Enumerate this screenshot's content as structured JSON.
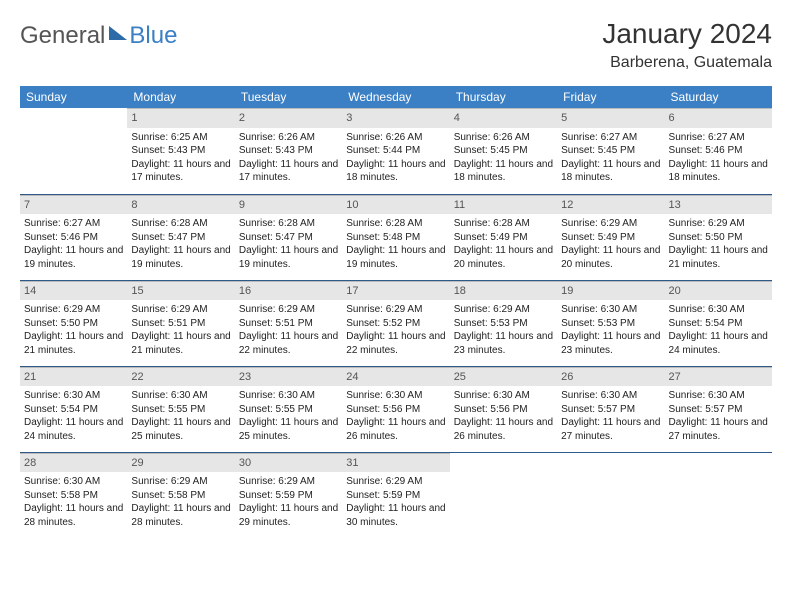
{
  "brand": {
    "word1": "General",
    "word2": "Blue"
  },
  "title": "January 2024",
  "location": "Barberena, Guatemala",
  "weekday_labels": [
    "Sunday",
    "Monday",
    "Tuesday",
    "Wednesday",
    "Thursday",
    "Friday",
    "Saturday"
  ],
  "colors": {
    "header_bg": "#3b7fc4",
    "header_text": "#ffffff",
    "daynum_bg": "#e6e6e6",
    "rule": "#2d5a8a",
    "logo_blue": "#3b7fc4"
  },
  "weeks": [
    [
      null,
      {
        "n": "1",
        "sunrise": "6:25 AM",
        "sunset": "5:43 PM",
        "dl_h": "11",
        "dl_m": "17"
      },
      {
        "n": "2",
        "sunrise": "6:26 AM",
        "sunset": "5:43 PM",
        "dl_h": "11",
        "dl_m": "17"
      },
      {
        "n": "3",
        "sunrise": "6:26 AM",
        "sunset": "5:44 PM",
        "dl_h": "11",
        "dl_m": "18"
      },
      {
        "n": "4",
        "sunrise": "6:26 AM",
        "sunset": "5:45 PM",
        "dl_h": "11",
        "dl_m": "18"
      },
      {
        "n": "5",
        "sunrise": "6:27 AM",
        "sunset": "5:45 PM",
        "dl_h": "11",
        "dl_m": "18"
      },
      {
        "n": "6",
        "sunrise": "6:27 AM",
        "sunset": "5:46 PM",
        "dl_h": "11",
        "dl_m": "18"
      }
    ],
    [
      {
        "n": "7",
        "sunrise": "6:27 AM",
        "sunset": "5:46 PM",
        "dl_h": "11",
        "dl_m": "19"
      },
      {
        "n": "8",
        "sunrise": "6:28 AM",
        "sunset": "5:47 PM",
        "dl_h": "11",
        "dl_m": "19"
      },
      {
        "n": "9",
        "sunrise": "6:28 AM",
        "sunset": "5:47 PM",
        "dl_h": "11",
        "dl_m": "19"
      },
      {
        "n": "10",
        "sunrise": "6:28 AM",
        "sunset": "5:48 PM",
        "dl_h": "11",
        "dl_m": "19"
      },
      {
        "n": "11",
        "sunrise": "6:28 AM",
        "sunset": "5:49 PM",
        "dl_h": "11",
        "dl_m": "20"
      },
      {
        "n": "12",
        "sunrise": "6:29 AM",
        "sunset": "5:49 PM",
        "dl_h": "11",
        "dl_m": "20"
      },
      {
        "n": "13",
        "sunrise": "6:29 AM",
        "sunset": "5:50 PM",
        "dl_h": "11",
        "dl_m": "21"
      }
    ],
    [
      {
        "n": "14",
        "sunrise": "6:29 AM",
        "sunset": "5:50 PM",
        "dl_h": "11",
        "dl_m": "21"
      },
      {
        "n": "15",
        "sunrise": "6:29 AM",
        "sunset": "5:51 PM",
        "dl_h": "11",
        "dl_m": "21"
      },
      {
        "n": "16",
        "sunrise": "6:29 AM",
        "sunset": "5:51 PM",
        "dl_h": "11",
        "dl_m": "22"
      },
      {
        "n": "17",
        "sunrise": "6:29 AM",
        "sunset": "5:52 PM",
        "dl_h": "11",
        "dl_m": "22"
      },
      {
        "n": "18",
        "sunrise": "6:29 AM",
        "sunset": "5:53 PM",
        "dl_h": "11",
        "dl_m": "23"
      },
      {
        "n": "19",
        "sunrise": "6:30 AM",
        "sunset": "5:53 PM",
        "dl_h": "11",
        "dl_m": "23"
      },
      {
        "n": "20",
        "sunrise": "6:30 AM",
        "sunset": "5:54 PM",
        "dl_h": "11",
        "dl_m": "24"
      }
    ],
    [
      {
        "n": "21",
        "sunrise": "6:30 AM",
        "sunset": "5:54 PM",
        "dl_h": "11",
        "dl_m": "24"
      },
      {
        "n": "22",
        "sunrise": "6:30 AM",
        "sunset": "5:55 PM",
        "dl_h": "11",
        "dl_m": "25"
      },
      {
        "n": "23",
        "sunrise": "6:30 AM",
        "sunset": "5:55 PM",
        "dl_h": "11",
        "dl_m": "25"
      },
      {
        "n": "24",
        "sunrise": "6:30 AM",
        "sunset": "5:56 PM",
        "dl_h": "11",
        "dl_m": "26"
      },
      {
        "n": "25",
        "sunrise": "6:30 AM",
        "sunset": "5:56 PM",
        "dl_h": "11",
        "dl_m": "26"
      },
      {
        "n": "26",
        "sunrise": "6:30 AM",
        "sunset": "5:57 PM",
        "dl_h": "11",
        "dl_m": "27"
      },
      {
        "n": "27",
        "sunrise": "6:30 AM",
        "sunset": "5:57 PM",
        "dl_h": "11",
        "dl_m": "27"
      }
    ],
    [
      {
        "n": "28",
        "sunrise": "6:30 AM",
        "sunset": "5:58 PM",
        "dl_h": "11",
        "dl_m": "28"
      },
      {
        "n": "29",
        "sunrise": "6:29 AM",
        "sunset": "5:58 PM",
        "dl_h": "11",
        "dl_m": "28"
      },
      {
        "n": "30",
        "sunrise": "6:29 AM",
        "sunset": "5:59 PM",
        "dl_h": "11",
        "dl_m": "29"
      },
      {
        "n": "31",
        "sunrise": "6:29 AM",
        "sunset": "5:59 PM",
        "dl_h": "11",
        "dl_m": "30"
      },
      null,
      null,
      null
    ]
  ],
  "labels": {
    "sunrise": "Sunrise: ",
    "sunset": "Sunset: ",
    "daylight1": "Daylight: ",
    "daylight2": " hours and ",
    "daylight3": " minutes."
  }
}
